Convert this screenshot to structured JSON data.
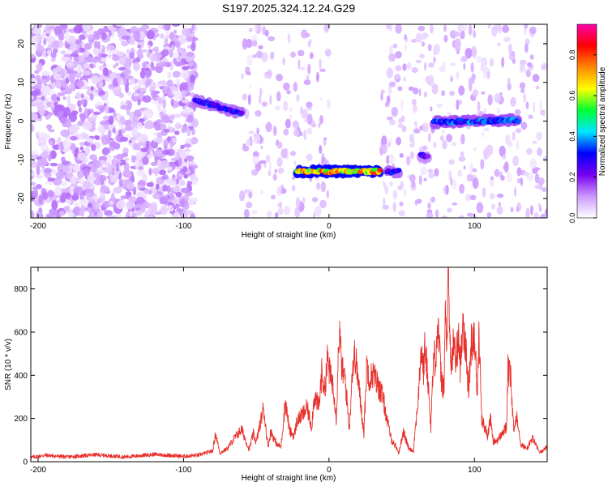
{
  "chart_data": [
    {
      "type": "heatmap",
      "title": "S197.2025.324.12.24.G29",
      "xlabel": "Height of straight line (km)",
      "ylabel": "Frequency (Hz)",
      "xlim": [
        -205,
        150
      ],
      "ylim": [
        -25,
        25
      ],
      "xticks": [
        -200,
        -100,
        0,
        100
      ],
      "yticks": [
        -20,
        -10,
        0,
        10,
        20
      ],
      "colorbar": {
        "label": "Normalized spectral amplitude",
        "range": [
          0,
          0.95
        ],
        "ticks": [
          0.0,
          0.2,
          0.4,
          0.6,
          0.8
        ],
        "colors": [
          "#ffffff",
          "#cc99ff",
          "#7700ee",
          "#0000ff",
          "#00e6ff",
          "#00ff33",
          "#ffff00",
          "#ff8800",
          "#ff0000",
          "#ff00aa"
        ]
      },
      "features": [
        {
          "name": "noise field",
          "x_range": [
            -205,
            -92
          ],
          "freq_range": [
            -25,
            25
          ],
          "amplitude": 0.1
        },
        {
          "name": "trace A",
          "x_range": [
            -92,
            -60
          ],
          "freq_start": 5.5,
          "freq_end": 2.0,
          "amplitude": 0.3
        },
        {
          "name": "trace B",
          "x_range": [
            -22,
            35
          ],
          "freq_start": -13,
          "freq_end": -13,
          "amplitude": 0.7
        },
        {
          "name": "trace C",
          "x_range": [
            40,
            48
          ],
          "freq_start": -13,
          "freq_end": -13,
          "amplitude": 0.3
        },
        {
          "name": "trace D",
          "x_range": [
            63,
            68
          ],
          "freq_start": -9,
          "freq_end": -9,
          "amplitude": 0.25
        },
        {
          "name": "trace E",
          "x_range": [
            72,
            130
          ],
          "freq_start": -0.3,
          "freq_end": 0.3,
          "amplitude": 0.35
        }
      ]
    },
    {
      "type": "line",
      "title": "",
      "xlabel": "Height of straight line (km)",
      "ylabel": "SNR (10 * v/v)",
      "xlim": [
        -205,
        150
      ],
      "ylim": [
        0,
        900
      ],
      "xticks": [
        -200,
        -100,
        0,
        100
      ],
      "yticks": [
        0,
        200,
        400,
        600,
        800
      ],
      "color": "#e8302c",
      "series": [
        {
          "name": "SNR",
          "x": [
            -205,
            -195,
            -180,
            -160,
            -140,
            -120,
            -100,
            -90,
            -80,
            -78,
            -75,
            -70,
            -65,
            -60,
            -55,
            -52,
            -50,
            -45,
            -42,
            -40,
            -36,
            -33,
            -30,
            -27,
            -24,
            -22,
            -18,
            -15,
            -12,
            -10,
            -7,
            -5,
            -3,
            -1,
            1,
            3,
            5,
            7,
            9,
            11,
            14,
            16,
            18,
            20,
            24,
            26,
            28,
            30,
            34,
            37,
            40,
            43,
            46,
            48,
            51,
            55,
            58,
            60,
            62,
            63,
            65,
            66,
            68,
            70,
            72,
            73,
            75,
            77,
            79,
            80,
            81,
            82,
            83,
            84,
            86,
            87,
            89,
            90,
            92,
            94,
            96,
            98,
            100,
            102,
            103,
            105,
            107,
            109,
            111,
            113,
            116,
            119,
            122,
            123,
            125,
            127,
            129,
            132,
            136,
            140,
            145,
            150
          ],
          "y": [
            20,
            30,
            22,
            32,
            22,
            34,
            25,
            30,
            50,
            130,
            40,
            60,
            110,
            150,
            55,
            130,
            90,
            250,
            70,
            140,
            80,
            70,
            280,
            140,
            120,
            190,
            220,
            250,
            160,
            310,
            250,
            410,
            330,
            480,
            390,
            360,
            200,
            610,
            420,
            390,
            150,
            430,
            500,
            380,
            130,
            460,
            380,
            410,
            350,
            300,
            190,
            100,
            70,
            40,
            140,
            60,
            50,
            200,
            340,
            530,
            420,
            540,
            380,
            160,
            500,
            470,
            630,
            400,
            320,
            700,
            520,
            890,
            600,
            420,
            590,
            440,
            590,
            420,
            670,
            520,
            330,
            560,
            600,
            300,
            600,
            200,
            160,
            120,
            200,
            90,
            100,
            130,
            160,
            430,
            380,
            140,
            220,
            80,
            60,
            110,
            40,
            70
          ]
        }
      ]
    }
  ]
}
